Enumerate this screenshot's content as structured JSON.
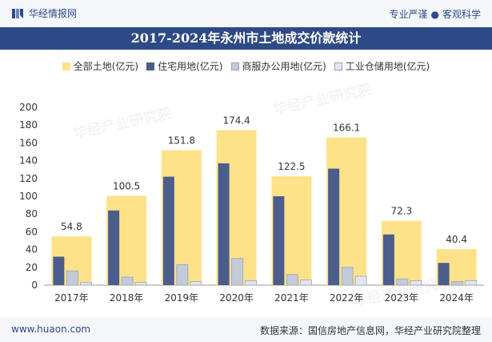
{
  "header": {
    "logo_text": "华经情报网",
    "tagline_left": "专业严谨",
    "tagline_dot": "●",
    "tagline_right": "客观科学"
  },
  "watermark": "华经产业研究院",
  "footer": {
    "website": "www.huaon.com",
    "source": "数据来源：国信房地产信息网，华经产业研究院整理"
  },
  "colors": {
    "total": "#fde28a",
    "residential": "#4b5d8c",
    "commercial": "#c3cad9",
    "industrial": "#e3e6ee",
    "header_band": "#2e4a86"
  },
  "chart_data": {
    "type": "bar",
    "title": "2017-2024年永州市土地成交价款统计",
    "xlabel": "",
    "ylabel": "",
    "ylim": [
      0,
      200
    ],
    "yticks": [
      0,
      20,
      40,
      60,
      80,
      100,
      120,
      140,
      160,
      180,
      200
    ],
    "categories": [
      "2017年",
      "2018年",
      "2019年",
      "2020年",
      "2021年",
      "2022年",
      "2023年",
      "2024年"
    ],
    "series": [
      {
        "name": "全部土地(亿元)",
        "values": [
          54.8,
          100.5,
          151.8,
          174.4,
          122.5,
          166.1,
          72.3,
          40.4
        ],
        "labels": [
          "54.8",
          "100.5",
          "151.8",
          "174.4",
          "122.5",
          "166.1",
          "72.3",
          "40.4"
        ]
      },
      {
        "name": "住宅用地(亿元)",
        "values": [
          32,
          84,
          122,
          137,
          100,
          131,
          57,
          25
        ]
      },
      {
        "name": "商服办公用地(亿元)",
        "values": [
          16,
          9,
          23,
          30,
          12,
          20,
          7,
          4
        ]
      },
      {
        "name": "工业仓储用地(亿元)",
        "values": [
          3,
          3,
          4,
          5,
          6,
          10,
          5,
          5
        ]
      }
    ],
    "legend_position": "top"
  }
}
